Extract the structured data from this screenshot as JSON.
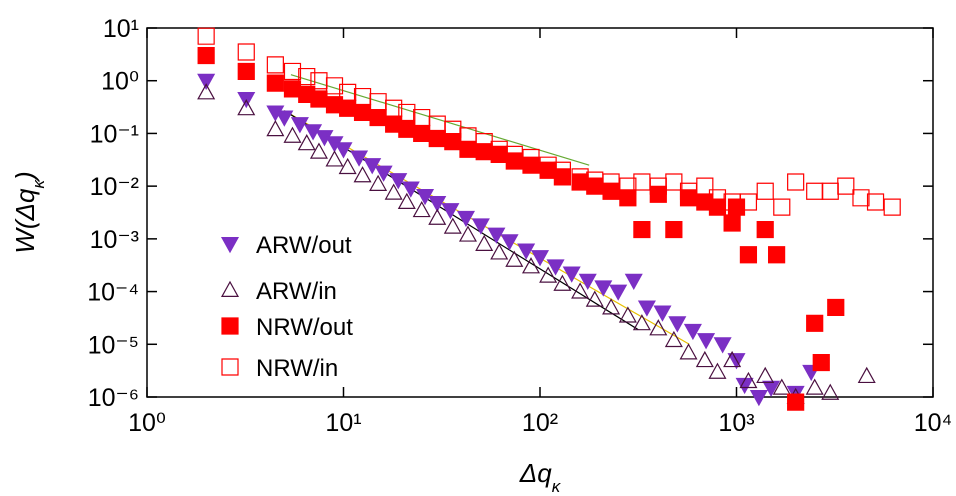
{
  "chart_data": {
    "type": "scatter",
    "xscale": "log",
    "yscale": "log",
    "xlabel": [
      "Δq",
      "κ"
    ],
    "ylabel": [
      "W(Δq",
      "κ",
      ")"
    ],
    "xlim": [
      1,
      10000
    ],
    "ylim": [
      1e-06,
      10
    ],
    "xticks": [
      {
        "value": 1,
        "label": "10⁰"
      },
      {
        "value": 10,
        "label": "10¹"
      },
      {
        "value": 100,
        "label": "10²"
      },
      {
        "value": 1000,
        "label": "10³"
      },
      {
        "value": 10000,
        "label": "10⁴"
      }
    ],
    "yticks": [
      {
        "value": 1e-06,
        "label": "10⁻⁶"
      },
      {
        "value": 1e-05,
        "label": "10⁻⁵"
      },
      {
        "value": 0.0001,
        "label": "10⁻⁴"
      },
      {
        "value": 0.001,
        "label": "10⁻³"
      },
      {
        "value": 0.01,
        "label": "10⁻²"
      },
      {
        "value": 0.1,
        "label": "10⁻¹"
      },
      {
        "value": 1,
        "label": "10⁰"
      },
      {
        "value": 10,
        "label": "10¹"
      }
    ],
    "legend": "lower-left",
    "series": [
      {
        "name": "ARW/out",
        "color": "#7b2fc4",
        "marker": "triangle-down-filled",
        "x": [
          2,
          3.2,
          4.5,
          5,
          6,
          7,
          8,
          9,
          10,
          12,
          14,
          16,
          19,
          22,
          26,
          30,
          35,
          42,
          50,
          60,
          70,
          85,
          100,
          120,
          145,
          175,
          210,
          250,
          300,
          350,
          420,
          500,
          600,
          700,
          850,
          1000,
          1100,
          1300,
          1500,
          2000,
          2400
        ],
        "values": [
          1.0,
          0.45,
          0.25,
          0.2,
          0.15,
          0.11,
          0.085,
          0.065,
          0.05,
          0.035,
          0.025,
          0.018,
          0.013,
          0.009,
          0.0065,
          0.0048,
          0.0035,
          0.0025,
          0.0018,
          0.0012,
          0.0009,
          0.0006,
          0.00045,
          0.0003,
          0.00022,
          0.00016,
          0.00012,
          0.0001,
          0.00016,
          5e-05,
          4e-05,
          2.5e-05,
          1.8e-05,
          1.2e-05,
          1e-05,
          5e-06,
          1.7e-06,
          1e-06,
          1.5e-06,
          1.2e-06,
          3e-06
        ]
      },
      {
        "name": "ARW/in",
        "color": "#4a1040",
        "marker": "triangle-up-open",
        "x": [
          2,
          3.2,
          4.5,
          5.5,
          6.5,
          7.5,
          9,
          10.5,
          12.5,
          15,
          18,
          21,
          25,
          30,
          36,
          43,
          52,
          62,
          74,
          90,
          110,
          130,
          160,
          190,
          230,
          280,
          330,
          400,
          480,
          570,
          690,
          800,
          950,
          1150,
          1400,
          1700,
          2000,
          2500,
          3000,
          4600
        ],
        "values": [
          0.6,
          0.3,
          0.12,
          0.09,
          0.065,
          0.045,
          0.032,
          0.023,
          0.016,
          0.011,
          0.0075,
          0.005,
          0.0035,
          0.0025,
          0.0017,
          0.0012,
          0.0008,
          0.00055,
          0.0004,
          0.0003,
          0.0002,
          0.00014,
          0.0001,
          7e-05,
          5e-05,
          3.5e-05,
          2.5e-05,
          2e-05,
          1.2e-05,
          7e-06,
          5e-06,
          3e-06,
          5e-06,
          2e-06,
          2.5e-06,
          1.5e-06,
          1e-06,
          1.5e-06,
          1.2e-06,
          2.5e-06
        ]
      },
      {
        "name": "NRW/out",
        "color": "#ff0000",
        "marker": "square-filled",
        "x": [
          2,
          3.2,
          4.5,
          5.5,
          6.5,
          7.5,
          9,
          10.5,
          12.5,
          15,
          18,
          21,
          25,
          30,
          36,
          43,
          52,
          62,
          74,
          90,
          110,
          130,
          160,
          190,
          230,
          280,
          330,
          400,
          480,
          570,
          690,
          800,
          950,
          1000,
          1150,
          1400,
          1600,
          2000,
          2500,
          2700,
          3200
        ],
        "values": [
          3,
          1.5,
          0.9,
          0.7,
          0.55,
          0.45,
          0.35,
          0.3,
          0.25,
          0.2,
          0.15,
          0.12,
          0.1,
          0.08,
          0.07,
          0.05,
          0.045,
          0.04,
          0.03,
          0.025,
          0.02,
          0.015,
          0.012,
          0.01,
          0.008,
          0.006,
          0.0015,
          0.007,
          0.0015,
          0.006,
          0.005,
          0.004,
          0.002,
          0.004,
          0.0005,
          0.0015,
          0.0005,
          8e-07,
          2.5e-05,
          4.5e-06,
          5e-05
        ]
      },
      {
        "name": "NRW/in",
        "color": "#ff0000",
        "marker": "square-open",
        "x": [
          2,
          3.2,
          4.5,
          5.5,
          6.5,
          7.5,
          9,
          10.5,
          12.5,
          15,
          18,
          21,
          25,
          30,
          36,
          43,
          52,
          62,
          74,
          90,
          110,
          130,
          160,
          190,
          230,
          280,
          330,
          400,
          480,
          570,
          690,
          800,
          950,
          1150,
          1400,
          1700,
          2000,
          2500,
          3000,
          3600,
          4300,
          5100,
          6200
        ],
        "values": [
          7,
          3.5,
          2,
          1.5,
          1.2,
          1,
          0.8,
          0.6,
          0.5,
          0.4,
          0.3,
          0.25,
          0.2,
          0.15,
          0.12,
          0.09,
          0.07,
          0.05,
          0.04,
          0.035,
          0.025,
          0.02,
          0.015,
          0.013,
          0.012,
          0.01,
          0.012,
          0.01,
          0.012,
          0.008,
          0.01,
          0.006,
          0.005,
          0.005,
          0.008,
          0.004,
          0.012,
          0.008,
          0.008,
          0.01,
          0.006,
          0.005,
          0.004
        ]
      }
    ],
    "fits": [
      {
        "color": "#66aa33",
        "x": [
          5.4,
          178
        ],
        "values": [
          1.3,
          0.025
        ]
      },
      {
        "color": "#e8c000",
        "x": [
          5,
          575
        ],
        "values": [
          0.27,
          1e-05
        ]
      },
      {
        "color": "#000000",
        "x": [
          5,
          316
        ],
        "values": [
          0.27,
          1.9e-05
        ]
      }
    ]
  }
}
